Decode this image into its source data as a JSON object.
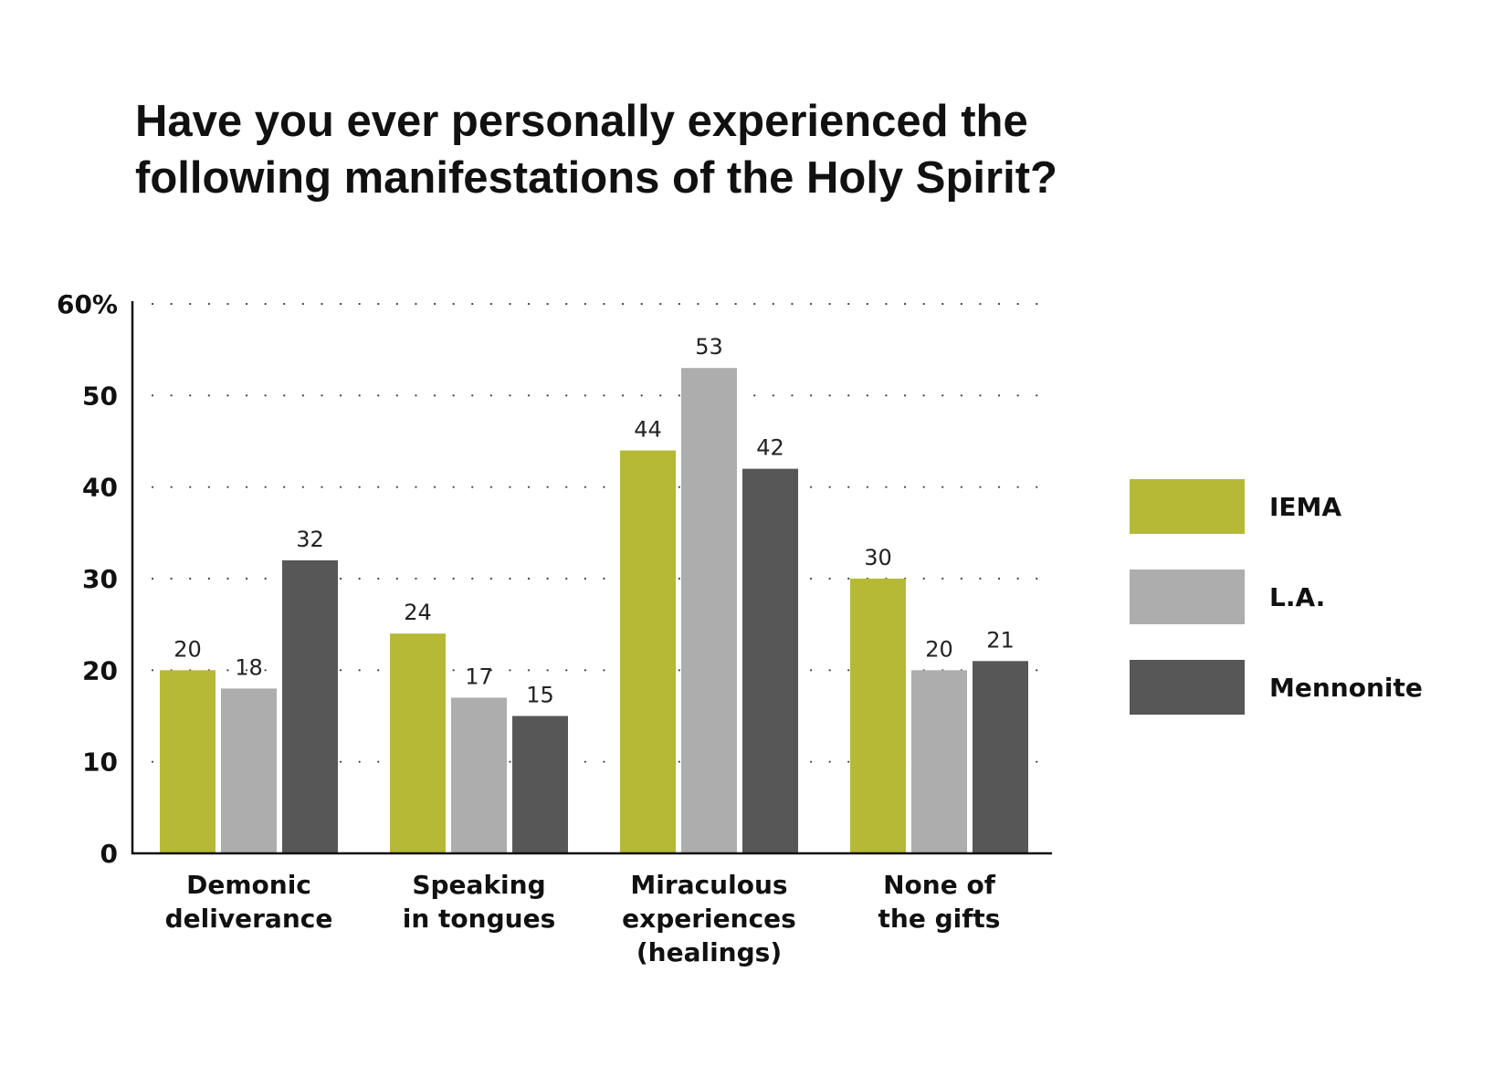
{
  "chart_data": {
    "type": "bar",
    "title_lines": [
      "Have you ever personally experienced the",
      "following manifestations of the Holy Spirit?"
    ],
    "categories": [
      [
        "Demonic",
        "deliverance"
      ],
      [
        "Speaking",
        "in tongues"
      ],
      [
        "Miraculous",
        "experiences",
        "(healings)"
      ],
      [
        "None of",
        "the gifts"
      ]
    ],
    "series": [
      {
        "name": "IEMA",
        "color": "#b5b935",
        "values": [
          20,
          24,
          44,
          30
        ]
      },
      {
        "name": "L.A.",
        "color": "#adadad",
        "values": [
          18,
          17,
          53,
          20
        ]
      },
      {
        "name": "Mennonite",
        "color": "#575757",
        "values": [
          32,
          15,
          42,
          21
        ]
      }
    ],
    "y_ticks": [
      "0",
      "10",
      "20",
      "30",
      "40",
      "50",
      "60%"
    ],
    "ylim": [
      0,
      60
    ],
    "grid": "dotted horizontal",
    "legend_position": "right"
  }
}
